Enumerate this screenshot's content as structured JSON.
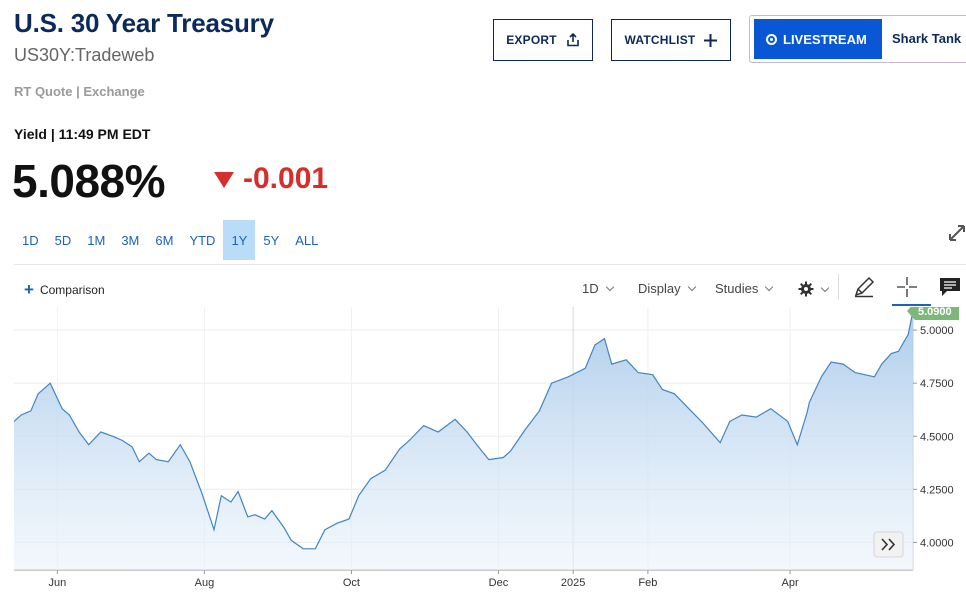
{
  "header": {
    "title": "U.S. 30 Year Treasury",
    "symbol": "US30Y:Tradeweb",
    "source_line": "RT Quote | Exchange"
  },
  "actions": {
    "export_label": "EXPORT",
    "watchlist_label": "WATCHLIST",
    "livestream_label": "LIVESTREAM",
    "livestream_show": "Shark Tank"
  },
  "quote": {
    "yield_label": "Yield | 11:49 PM EDT",
    "price": "5.088%",
    "change": "-0.001",
    "change_direction": "down"
  },
  "ranges": {
    "items": [
      "1D",
      "5D",
      "1M",
      "3M",
      "6M",
      "YTD",
      "1Y",
      "5Y",
      "ALL"
    ],
    "active": "1Y"
  },
  "toolbar": {
    "comparison_label": "Comparison",
    "interval_label": "1D",
    "display_label": "Display",
    "studies_label": "Studies",
    "icons": [
      "gear-icon",
      "pencil-icon",
      "crosshair-icon",
      "comment-icon"
    ]
  },
  "colors": {
    "brand_navy": "#0b2a5b",
    "link_blue": "#1a63b8",
    "live_blue": "#0a57d6",
    "negative_red": "#d62d2d",
    "line_blue": "#3f86c4",
    "area_fill_top": "#a8c9ea",
    "last_value_badge": "#7cb87a"
  },
  "chart_data": {
    "type": "area",
    "x_start": "2024-05-14",
    "x_end": "2025-05-22",
    "x_tick_labels": [
      "Jun",
      "Aug",
      "Oct",
      "Dec",
      "2025",
      "Feb",
      "Apr"
    ],
    "x_tick_dates": [
      "2024-06-01",
      "2024-08-01",
      "2024-10-01",
      "2024-12-01",
      "2025-01-01",
      "2025-02-01",
      "2025-04-01"
    ],
    "y_tick_labels": [
      "4.0000",
      "4.2500",
      "4.5000",
      "4.7500",
      "5.0000"
    ],
    "y_ticks": [
      4.0,
      4.25,
      4.5,
      4.75,
      5.0
    ],
    "ylim": [
      3.87,
      5.09
    ],
    "last_value_label": "5.0900",
    "grid": true,
    "points": [
      [
        "2024-05-14",
        4.57
      ],
      [
        "2024-05-17",
        4.6
      ],
      [
        "2024-05-21",
        4.62
      ],
      [
        "2024-05-24",
        4.7
      ],
      [
        "2024-05-29",
        4.75
      ],
      [
        "2024-06-03",
        4.63
      ],
      [
        "2024-06-06",
        4.6
      ],
      [
        "2024-06-10",
        4.52
      ],
      [
        "2024-06-14",
        4.46
      ],
      [
        "2024-06-19",
        4.52
      ],
      [
        "2024-06-24",
        4.5
      ],
      [
        "2024-06-28",
        4.48
      ],
      [
        "2024-07-02",
        4.45
      ],
      [
        "2024-07-05",
        4.38
      ],
      [
        "2024-07-09",
        4.42
      ],
      [
        "2024-07-12",
        4.39
      ],
      [
        "2024-07-17",
        4.38
      ],
      [
        "2024-07-22",
        4.46
      ],
      [
        "2024-07-26",
        4.38
      ],
      [
        "2024-07-31",
        4.23
      ],
      [
        "2024-08-05",
        4.06
      ],
      [
        "2024-08-08",
        4.22
      ],
      [
        "2024-08-12",
        4.19
      ],
      [
        "2024-08-15",
        4.24
      ],
      [
        "2024-08-19",
        4.12
      ],
      [
        "2024-08-22",
        4.13
      ],
      [
        "2024-08-26",
        4.11
      ],
      [
        "2024-08-29",
        4.15
      ],
      [
        "2024-09-03",
        4.07
      ],
      [
        "2024-09-06",
        4.01
      ],
      [
        "2024-09-11",
        3.97
      ],
      [
        "2024-09-16",
        3.97
      ],
      [
        "2024-09-20",
        4.06
      ],
      [
        "2024-09-25",
        4.09
      ],
      [
        "2024-09-30",
        4.11
      ],
      [
        "2024-10-04",
        4.22
      ],
      [
        "2024-10-09",
        4.3
      ],
      [
        "2024-10-15",
        4.34
      ],
      [
        "2024-10-21",
        4.44
      ],
      [
        "2024-10-25",
        4.48
      ],
      [
        "2024-10-31",
        4.55
      ],
      [
        "2024-11-06",
        4.52
      ],
      [
        "2024-11-13",
        4.58
      ],
      [
        "2024-11-18",
        4.52
      ],
      [
        "2024-11-22",
        4.46
      ],
      [
        "2024-11-27",
        4.39
      ],
      [
        "2024-12-03",
        4.4
      ],
      [
        "2024-12-06",
        4.43
      ],
      [
        "2024-12-12",
        4.53
      ],
      [
        "2024-12-18",
        4.62
      ],
      [
        "2024-12-23",
        4.75
      ],
      [
        "2024-12-30",
        4.78
      ],
      [
        "2025-01-06",
        4.82
      ],
      [
        "2025-01-10",
        4.93
      ],
      [
        "2025-01-14",
        4.96
      ],
      [
        "2025-01-17",
        4.84
      ],
      [
        "2025-01-23",
        4.86
      ],
      [
        "2025-01-28",
        4.8
      ],
      [
        "2025-02-03",
        4.79
      ],
      [
        "2025-02-07",
        4.72
      ],
      [
        "2025-02-12",
        4.7
      ],
      [
        "2025-02-18",
        4.63
      ],
      [
        "2025-02-24",
        4.56
      ],
      [
        "2025-03-03",
        4.47
      ],
      [
        "2025-03-07",
        4.57
      ],
      [
        "2025-03-12",
        4.6
      ],
      [
        "2025-03-18",
        4.59
      ],
      [
        "2025-03-24",
        4.63
      ],
      [
        "2025-03-31",
        4.57
      ],
      [
        "2025-04-04",
        4.46
      ],
      [
        "2025-04-08",
        4.61
      ],
      [
        "2025-04-09",
        4.66
      ],
      [
        "2025-04-14",
        4.78
      ],
      [
        "2025-04-18",
        4.85
      ],
      [
        "2025-04-23",
        4.84
      ],
      [
        "2025-04-28",
        4.8
      ],
      [
        "2025-05-02",
        4.79
      ],
      [
        "2025-05-06",
        4.78
      ],
      [
        "2025-05-09",
        4.84
      ],
      [
        "2025-05-13",
        4.89
      ],
      [
        "2025-05-16",
        4.9
      ],
      [
        "2025-05-20",
        4.98
      ],
      [
        "2025-05-22",
        5.09
      ]
    ]
  }
}
